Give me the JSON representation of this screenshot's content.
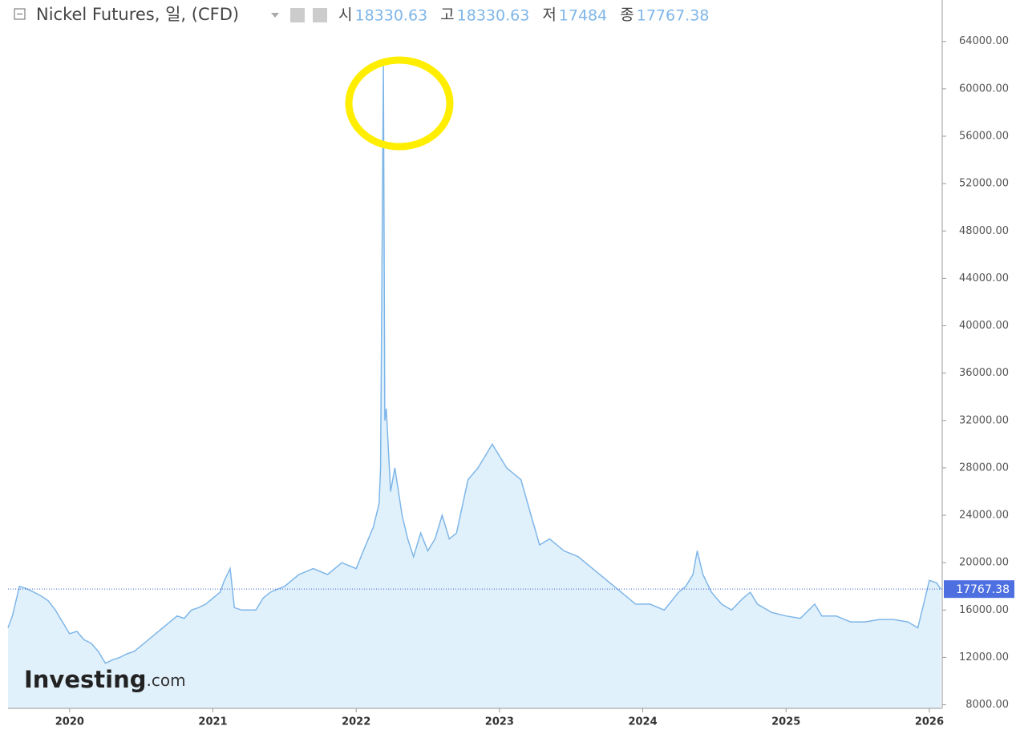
{
  "chart_data": {
    "type": "line",
    "title": "Nickel Futures, 일, (CFD)",
    "ohlc": [
      {
        "label": "시",
        "value": 18330.63
      },
      {
        "label": "고",
        "value": 18330.63
      },
      {
        "label": "저",
        "value": 17484.0
      },
      {
        "label": "종",
        "value": 17767.38
      }
    ],
    "last_value": 17767.38,
    "watermark": [
      "Investing",
      ".com"
    ],
    "color": "#7eb6e8",
    "fill": "#e1f1fb",
    "x": [
      2019.57,
      2019.6,
      2019.65,
      2019.7,
      2019.75,
      2019.8,
      2019.85,
      2019.9,
      2019.95,
      2020.0,
      2020.05,
      2020.1,
      2020.15,
      2020.2,
      2020.25,
      2020.3,
      2020.35,
      2020.4,
      2020.45,
      2020.5,
      2020.55,
      2020.6,
      2020.65,
      2020.7,
      2020.75,
      2020.8,
      2020.85,
      2020.9,
      2020.95,
      2021.0,
      2021.05,
      2021.08,
      2021.12,
      2021.15,
      2021.2,
      2021.3,
      2021.35,
      2021.4,
      2021.5,
      2021.6,
      2021.7,
      2021.8,
      2021.9,
      2022.0,
      2022.05,
      2022.12,
      2022.16,
      2022.17,
      2022.19,
      2022.2,
      2022.21,
      2022.24,
      2022.27,
      2022.32,
      2022.36,
      2022.4,
      2022.45,
      2022.5,
      2022.55,
      2022.6,
      2022.65,
      2022.7,
      2022.78,
      2022.85,
      2022.95,
      2023.05,
      2023.15,
      2023.22,
      2023.28,
      2023.35,
      2023.45,
      2023.55,
      2023.65,
      2023.75,
      2023.85,
      2023.95,
      2024.05,
      2024.15,
      2024.25,
      2024.3,
      2024.35,
      2024.38,
      2024.42,
      2024.48,
      2024.55,
      2024.62,
      2024.7,
      2024.75,
      2024.8,
      2024.9,
      2025.0,
      2025.1,
      2025.2,
      2025.25,
      2025.35,
      2025.45,
      2025.55,
      2025.65,
      2025.75,
      2025.85,
      2025.92,
      2025.96,
      2026.0,
      2026.05,
      2026.08
    ],
    "values": [
      14500,
      15500,
      18000,
      17800,
      17500,
      17200,
      16800,
      16000,
      15000,
      14000,
      14200,
      13500,
      13200,
      12500,
      11500,
      11800,
      12000,
      12300,
      12500,
      13000,
      13500,
      14000,
      14500,
      15000,
      15500,
      15300,
      16000,
      16200,
      16500,
      17000,
      17500,
      18500,
      19500,
      16200,
      16000,
      16000,
      17000,
      17500,
      18000,
      19000,
      19500,
      19000,
      20000,
      19500,
      21000,
      23000,
      25000,
      28000,
      62000,
      32000,
      33000,
      26000,
      28000,
      24000,
      22000,
      20500,
      22500,
      21000,
      22000,
      24000,
      22000,
      22500,
      27000,
      28000,
      30000,
      28000,
      27000,
      24000,
      21500,
      22000,
      21000,
      20500,
      19500,
      18500,
      17500,
      16500,
      16500,
      16000,
      17500,
      18000,
      19000,
      21000,
      19000,
      17500,
      16500,
      16000,
      17000,
      17500,
      16500,
      15800,
      15500,
      15300,
      16500,
      15500,
      15500,
      15000,
      15000,
      15200,
      15200,
      15000,
      14500,
      16500,
      18500,
      18300,
      17767.38
    ],
    "xlim": [
      2019.57,
      2026.09
    ],
    "xticks": [
      2020,
      2021,
      2022,
      2023,
      2024,
      2025,
      2026
    ],
    "ylim": [
      7700,
      67500
    ],
    "yticks": [
      {
        "value": 8000,
        "label": "8000.00"
      },
      {
        "value": 12000,
        "label": "12000.00"
      },
      {
        "value": 16000,
        "label": "16000.00"
      },
      {
        "value": 20000,
        "label": "20000.00"
      },
      {
        "value": 24000,
        "label": "24000.00"
      },
      {
        "value": 28000,
        "label": "28000.00"
      },
      {
        "value": 32000,
        "label": "32000.00"
      },
      {
        "value": 36000,
        "label": "36000.00"
      },
      {
        "value": 40000,
        "label": "40000.00"
      },
      {
        "value": 44000,
        "label": "44000.00"
      },
      {
        "value": 48000,
        "label": "48000.00"
      },
      {
        "value": 52000,
        "label": "52000.00"
      },
      {
        "value": 56000,
        "label": "56000.00"
      },
      {
        "value": 60000,
        "label": "60000.00"
      },
      {
        "value": 64000,
        "label": "64000.00"
      }
    ]
  }
}
